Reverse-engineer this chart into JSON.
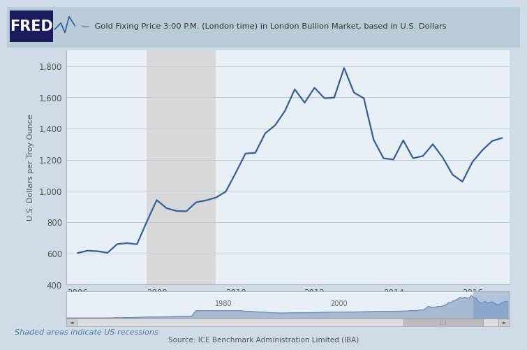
{
  "title": "Gold Fixing Price 3:00 P.M. (London time) in London Bullion Market, based in U.S. Dollars",
  "ylabel": "U.S. Dollars per Troy Ounce",
  "source": "Source: ICE Benchmark Administration Limited (IBA)",
  "shaded_note": "Shaded areas indicate US recessions",
  "background_color": "#cfdce8",
  "plot_bg_color": "#e8eff5",
  "line_color": "#3060a0",
  "recession_color": "#d8d8d8",
  "recession_start": 2007.75,
  "recession_end": 2009.5,
  "ylim": [
    400,
    1900
  ],
  "yticks": [
    400,
    600,
    800,
    1000,
    1200,
    1400,
    1600,
    1800
  ],
  "ytick_labels": [
    "400",
    "600",
    "800",
    "1,000",
    "1,200",
    "1,400",
    "1,600",
    "1,800"
  ],
  "xlim": [
    2005.7,
    2016.95
  ],
  "xticks": [
    2006,
    2008,
    2010,
    2012,
    2014,
    2016
  ],
  "dates": [
    2006.0,
    2006.25,
    2006.5,
    2006.75,
    2007.0,
    2007.25,
    2007.5,
    2007.75,
    2008.0,
    2008.25,
    2008.5,
    2008.75,
    2009.0,
    2009.25,
    2009.5,
    2009.75,
    2010.0,
    2010.25,
    2010.5,
    2010.75,
    2011.0,
    2011.25,
    2011.5,
    2011.75,
    2012.0,
    2012.25,
    2012.5,
    2012.75,
    2013.0,
    2013.25,
    2013.5,
    2013.75,
    2014.0,
    2014.25,
    2014.5,
    2014.75,
    2015.0,
    2015.25,
    2015.5,
    2015.75,
    2016.0,
    2016.25,
    2016.5,
    2016.75
  ],
  "values": [
    603,
    618,
    614,
    604,
    660,
    666,
    659,
    804,
    942,
    890,
    872,
    870,
    928,
    940,
    958,
    996,
    1115,
    1240,
    1245,
    1370,
    1421,
    1513,
    1652,
    1566,
    1662,
    1595,
    1599,
    1789,
    1631,
    1595,
    1328,
    1210,
    1202,
    1325,
    1210,
    1225,
    1300,
    1215,
    1105,
    1060,
    1185,
    1260,
    1320,
    1340
  ],
  "title_color": "#333333",
  "axis_color": "#555555",
  "grid_color": "#c0cdd8",
  "line_width": 1.6,
  "fred_bg": "#1a1a5e",
  "header_bg": "#b8ccd8",
  "mini_highlight_start": 2013.0,
  "mini_highlight_end": 2016.95
}
